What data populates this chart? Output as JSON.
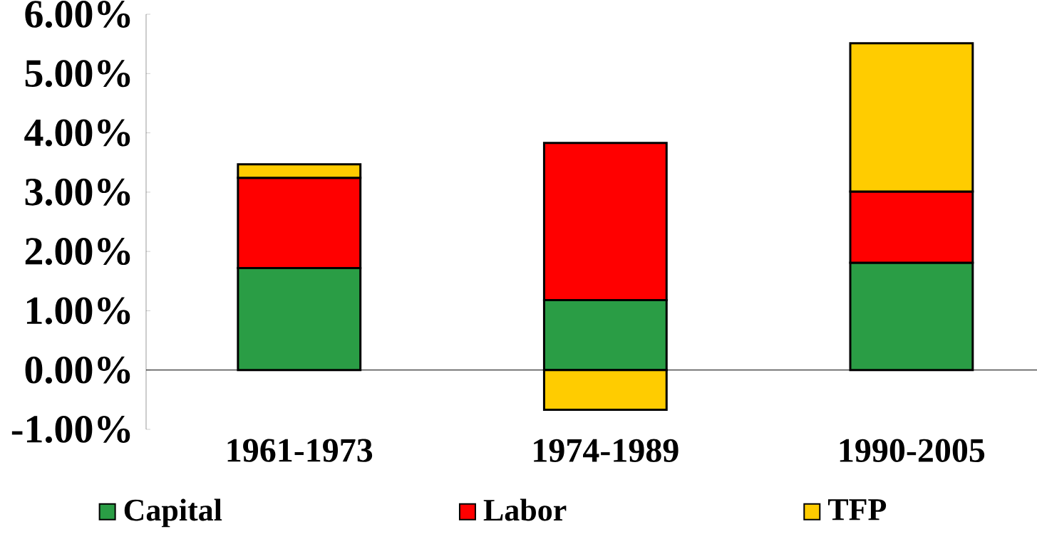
{
  "chart_data": {
    "type": "bar",
    "stacked": true,
    "categories": [
      "1961-1973",
      "1974-1989",
      "1990-2005"
    ],
    "series": [
      {
        "name": "Capital",
        "color": "#2a9d45",
        "values": [
          1.72,
          1.18,
          1.81
        ]
      },
      {
        "name": "Labor",
        "color": "#ff0000",
        "values": [
          1.52,
          2.65,
          1.2
        ]
      },
      {
        "name": "TFP",
        "color": "#ffcc00",
        "values": [
          0.23,
          -0.67,
          2.5
        ]
      }
    ],
    "ylim": [
      -1,
      6
    ],
    "yticks": [
      {
        "value": -1,
        "label": "-1.00%"
      },
      {
        "value": 0,
        "label": "0.00%"
      },
      {
        "value": 1,
        "label": "1.00%"
      },
      {
        "value": 2,
        "label": "2.00%"
      },
      {
        "value": 3,
        "label": "3.00%"
      },
      {
        "value": 4,
        "label": "4.00%"
      },
      {
        "value": 5,
        "label": "5.00%"
      },
      {
        "value": 6,
        "label": "6.00%"
      }
    ],
    "legend": "bottom"
  }
}
